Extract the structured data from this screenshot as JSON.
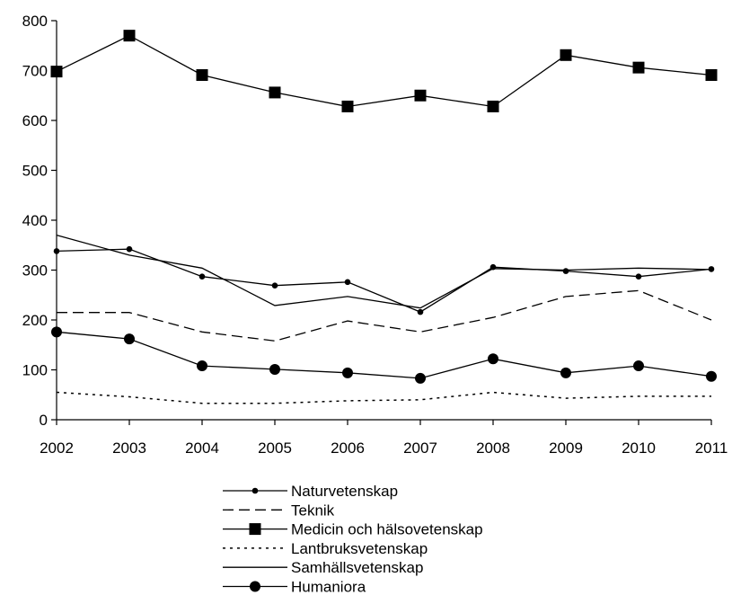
{
  "chart_data": {
    "type": "line",
    "title": "",
    "xlabel": "",
    "ylabel": "",
    "x": [
      2002,
      2003,
      2004,
      2005,
      2006,
      2007,
      2008,
      2009,
      2010,
      2011
    ],
    "ylim": [
      0,
      800
    ],
    "yticks": [
      0,
      100,
      200,
      300,
      400,
      500,
      600,
      700,
      800
    ],
    "grid": false,
    "legend_position": "bottom",
    "series": [
      {
        "name": "Naturvetenskap",
        "style": "solid-small-dots",
        "values": [
          338,
          342,
          287,
          269,
          276,
          216,
          306,
          298,
          287,
          302
        ]
      },
      {
        "name": "Teknik",
        "style": "dashed",
        "values": [
          215,
          215,
          176,
          158,
          198,
          176,
          205,
          247,
          259,
          200
        ]
      },
      {
        "name": "Medicin och hälsovetenskap",
        "style": "solid-squares",
        "values": [
          698,
          770,
          691,
          656,
          628,
          650,
          628,
          731,
          706,
          691
        ]
      },
      {
        "name": "Lantbruksvetenskap",
        "style": "dotted",
        "values": [
          55,
          46,
          33,
          33,
          38,
          40,
          55,
          43,
          47,
          47
        ]
      },
      {
        "name": "Samhällsvetenskap",
        "style": "solid",
        "values": [
          370,
          330,
          304,
          229,
          247,
          224,
          303,
          300,
          304,
          301
        ]
      },
      {
        "name": "Humaniora",
        "style": "solid-circles",
        "values": [
          176,
          162,
          108,
          101,
          94,
          83,
          122,
          94,
          108,
          87
        ]
      }
    ]
  }
}
